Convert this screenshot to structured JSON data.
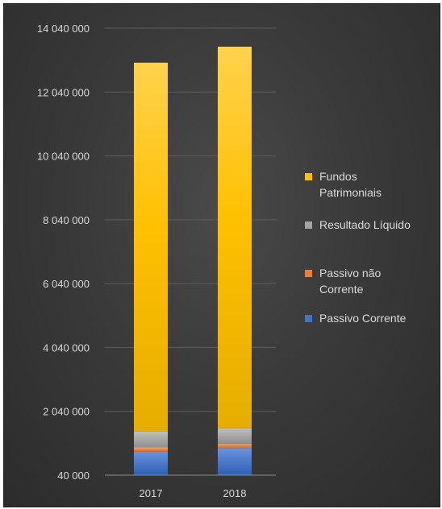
{
  "chart_data": {
    "type": "bar",
    "stacked": true,
    "title": "",
    "xlabel": "",
    "ylabel": "",
    "categories": [
      "2017",
      "2018"
    ],
    "ylim": [
      40000,
      14040000
    ],
    "yticks": [
      40000,
      2040000,
      4040000,
      6040000,
      8040000,
      10040000,
      12040000,
      14040000
    ],
    "ytick_labels": [
      "40 000",
      "2 040 000",
      "4 040 000",
      "6 040 000",
      "8 040 000",
      "10 040 000",
      "12 040 000",
      "14 040 000"
    ],
    "grid": true,
    "legend_position": "right",
    "series": [
      {
        "name": "Passivo Corrente",
        "color": "#4472c4",
        "values": [
          740000,
          850000
        ]
      },
      {
        "name": "Passivo não Corrente",
        "color": "#ed7d31",
        "values": [
          130000,
          140000
        ]
      },
      {
        "name": "Resultado Líquido",
        "color": "#a5a5a5",
        "values": [
          500000,
          480000
        ]
      },
      {
        "name": "Fundos Patrimoniais",
        "color": "#ffc000",
        "values": [
          11550000,
          11950000
        ]
      }
    ],
    "legend_order": [
      {
        "series": 3,
        "lines": [
          "Fundos",
          "Patrimoniais"
        ]
      },
      {
        "series": 2,
        "lines": [
          "Resultado Líquido"
        ]
      },
      {
        "series": 1,
        "lines": [
          "Passivo não",
          "Corrente"
        ]
      },
      {
        "series": 0,
        "lines": [
          "Passivo Corrente"
        ]
      }
    ]
  }
}
